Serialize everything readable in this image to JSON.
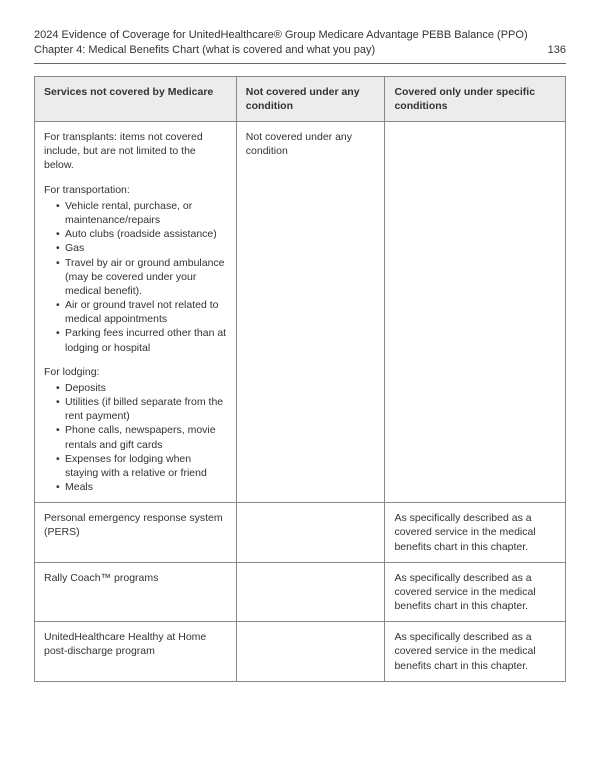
{
  "header": {
    "title_line1": "2024 Evidence of Coverage for UnitedHealthcare® Group Medicare Advantage PEBB Balance (PPO)",
    "chapter_line": "Chapter 4: Medical Benefits Chart (what is covered and what you pay)",
    "page_number": "136"
  },
  "table": {
    "columns": [
      "Services not covered by Medicare",
      "Not covered under any condition",
      "Covered only under specific conditions"
    ],
    "rows": [
      {
        "cell1": {
          "intro": "For transplants: items not covered include, but are not limited to the below.",
          "transport_head": "For transportation:",
          "transport_items": [
            "Vehicle rental, purchase, or maintenance/repairs",
            "Auto clubs (roadside assistance)",
            "Gas",
            "Travel by air or ground ambulance (may be covered under your medical benefit).",
            "Air or ground travel not related to medical appointments",
            "Parking fees incurred other than at lodging or hospital"
          ],
          "lodging_head": "For lodging:",
          "lodging_items": [
            "Deposits",
            "Utilities (if billed separate from the rent payment)",
            "Phone calls, newspapers, movie rentals and gift cards",
            "Expenses for lodging when staying with a relative or friend",
            "Meals"
          ]
        },
        "cell2": "Not covered under any condition",
        "cell3": ""
      },
      {
        "cell1_text": "Personal emergency response system (PERS)",
        "cell2": "",
        "cell3": "As specifically described as a covered service in the medical benefits chart in this chapter."
      },
      {
        "cell1_text": "Rally Coach™ programs",
        "cell2": "",
        "cell3": "As specifically described as a covered service in the medical benefits chart in this chapter."
      },
      {
        "cell1_text": "UnitedHealthcare Healthy at Home post-discharge program",
        "cell2": "",
        "cell3": "As specifically described as a covered service in the medical benefits chart in this chapter."
      }
    ]
  }
}
